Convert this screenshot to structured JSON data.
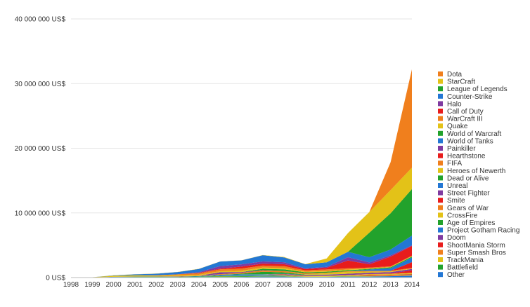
{
  "chart_data": {
    "type": "area",
    "stacked": true,
    "title": "",
    "xlabel": "",
    "ylabel": "",
    "ylim": [
      0,
      40000000
    ],
    "ytick_values": [
      0,
      10000000,
      20000000,
      30000000,
      40000000
    ],
    "ytick_labels": [
      "0 US$",
      "10 000 000 US$",
      "20 000 000 US$",
      "30 000 000 US$",
      "40 000 000 US$"
    ],
    "grid": true,
    "legend_position": "right",
    "x": [
      "1998",
      "1999",
      "2000",
      "2001",
      "2002",
      "2003",
      "2004",
      "2005",
      "2006",
      "2007",
      "2008",
      "2009",
      "2010",
      "2011",
      "2012",
      "2013",
      "2014"
    ],
    "series_order_bottom_to_top": "reverse of legend",
    "series": [
      {
        "name": "Dota",
        "color": "#f07f1d",
        "values": [
          0,
          0,
          0,
          0,
          0,
          0,
          0,
          0,
          0,
          0,
          0,
          0,
          0,
          0,
          0,
          4300000,
          15200000
        ]
      },
      {
        "name": "StarCraft",
        "color": "#e3c218",
        "values": [
          0,
          0,
          30000,
          20000,
          20000,
          20000,
          20000,
          20000,
          20000,
          30000,
          60000,
          30000,
          600000,
          2900000,
          3200000,
          3600000,
          3300000
        ]
      },
      {
        "name": "League of Legends",
        "color": "#22a22c",
        "values": [
          0,
          0,
          0,
          0,
          0,
          0,
          0,
          0,
          0,
          0,
          0,
          0,
          0,
          0,
          3800000,
          5600000,
          7200000
        ]
      },
      {
        "name": "Counter-Strike",
        "color": "#2377d4",
        "values": [
          0,
          0,
          50000,
          150000,
          250000,
          350000,
          500000,
          700000,
          600000,
          950000,
          750000,
          650000,
          700000,
          850000,
          800000,
          900000,
          1500000
        ]
      },
      {
        "name": "Halo",
        "color": "#7f3aa0",
        "values": [
          0,
          0,
          0,
          0,
          0,
          0,
          100000,
          400000,
          350000,
          350000,
          300000,
          100000,
          150000,
          500000,
          300000,
          200000,
          100000
        ]
      },
      {
        "name": "Call of Duty",
        "color": "#e81c1c",
        "values": [
          0,
          0,
          0,
          0,
          0,
          0,
          50000,
          100000,
          300000,
          300000,
          300000,
          200000,
          250000,
          1200000,
          500000,
          1500000,
          1500000
        ]
      },
      {
        "name": "WarCraft III",
        "color": "#f07f1d",
        "values": [
          0,
          0,
          0,
          0,
          50000,
          150000,
          250000,
          300000,
          350000,
          300000,
          300000,
          200000,
          250000,
          200000,
          150000,
          100000,
          100000
        ]
      },
      {
        "name": "Quake",
        "color": "#e3c218",
        "values": [
          50000,
          50000,
          150000,
          200000,
          150000,
          150000,
          150000,
          150000,
          200000,
          200000,
          200000,
          100000,
          100000,
          100000,
          50000,
          50000,
          50000
        ]
      },
      {
        "name": "World of Warcraft",
        "color": "#22a22c",
        "values": [
          0,
          0,
          0,
          0,
          0,
          0,
          0,
          0,
          0,
          200000,
          250000,
          150000,
          150000,
          150000,
          100000,
          150000,
          150000
        ]
      },
      {
        "name": "World of Tanks",
        "color": "#2377d4",
        "values": [
          0,
          0,
          0,
          0,
          0,
          0,
          0,
          0,
          0,
          0,
          0,
          0,
          0,
          0,
          200000,
          400000,
          700000
        ]
      },
      {
        "name": "Painkiller",
        "color": "#7f3aa0",
        "values": [
          0,
          0,
          0,
          0,
          0,
          0,
          0,
          300000,
          100000,
          50000,
          20000,
          0,
          0,
          0,
          0,
          0,
          0
        ]
      },
      {
        "name": "Hearthstone",
        "color": "#e81c1c",
        "values": [
          0,
          0,
          0,
          0,
          0,
          0,
          0,
          0,
          0,
          0,
          0,
          0,
          0,
          0,
          0,
          0,
          900000
        ]
      },
      {
        "name": "FIFA",
        "color": "#f07f1d",
        "values": [
          0,
          0,
          0,
          0,
          0,
          50000,
          50000,
          100000,
          150000,
          200000,
          200000,
          150000,
          100000,
          100000,
          100000,
          100000,
          100000
        ]
      },
      {
        "name": "Heroes of Newerth",
        "color": "#e3c218",
        "values": [
          0,
          0,
          0,
          0,
          0,
          0,
          0,
          0,
          0,
          0,
          0,
          50000,
          200000,
          300000,
          200000,
          100000,
          50000
        ]
      },
      {
        "name": "Dead or Alive",
        "color": "#22a22c",
        "values": [
          0,
          0,
          0,
          0,
          0,
          0,
          0,
          0,
          100000,
          400000,
          200000,
          50000,
          0,
          0,
          0,
          0,
          0
        ]
      },
      {
        "name": "Unreal",
        "color": "#2377d4",
        "values": [
          0,
          0,
          50000,
          50000,
          50000,
          50000,
          50000,
          50000,
          50000,
          50000,
          50000,
          20000,
          20000,
          0,
          0,
          0,
          0
        ]
      },
      {
        "name": "Street Fighter",
        "color": "#7f3aa0",
        "values": [
          0,
          0,
          0,
          0,
          0,
          0,
          0,
          0,
          0,
          0,
          50000,
          100000,
          150000,
          200000,
          200000,
          200000,
          200000
        ]
      },
      {
        "name": "Smite",
        "color": "#e81c1c",
        "values": [
          0,
          0,
          0,
          0,
          0,
          0,
          0,
          0,
          0,
          0,
          0,
          0,
          0,
          0,
          0,
          50000,
          400000
        ]
      },
      {
        "name": "Gears of War",
        "color": "#f07f1d",
        "values": [
          0,
          0,
          0,
          0,
          0,
          0,
          0,
          0,
          0,
          50000,
          150000,
          100000,
          50000,
          50000,
          50000,
          50000,
          50000
        ]
      },
      {
        "name": "CrossFire",
        "color": "#e3c218",
        "values": [
          0,
          0,
          0,
          0,
          0,
          0,
          0,
          0,
          0,
          0,
          0,
          0,
          50000,
          100000,
          100000,
          100000,
          150000
        ]
      },
      {
        "name": "Age of Empires",
        "color": "#22a22c",
        "values": [
          0,
          0,
          50000,
          50000,
          50000,
          50000,
          50000,
          50000,
          50000,
          50000,
          50000,
          20000,
          20000,
          20000,
          20000,
          20000,
          20000
        ]
      },
      {
        "name": "Project Gotham Racing",
        "color": "#2377d4",
        "values": [
          0,
          0,
          0,
          0,
          0,
          0,
          0,
          100000,
          150000,
          100000,
          50000,
          0,
          0,
          0,
          0,
          0,
          0
        ]
      },
      {
        "name": "Doom",
        "color": "#7f3aa0",
        "values": [
          0,
          0,
          0,
          0,
          0,
          0,
          0,
          0,
          0,
          0,
          0,
          0,
          0,
          0,
          0,
          0,
          0
        ]
      },
      {
        "name": "ShootMania Storm",
        "color": "#e81c1c",
        "values": [
          0,
          0,
          0,
          0,
          0,
          0,
          0,
          0,
          0,
          0,
          0,
          0,
          0,
          0,
          100000,
          100000,
          100000
        ]
      },
      {
        "name": "Super Smash Bros",
        "color": "#f07f1d",
        "values": [
          0,
          0,
          0,
          0,
          0,
          0,
          0,
          0,
          0,
          0,
          0,
          0,
          0,
          0,
          50000,
          50000,
          50000
        ]
      },
      {
        "name": "TrackMania",
        "color": "#e3c218",
        "values": [
          0,
          0,
          0,
          0,
          0,
          0,
          0,
          50000,
          50000,
          50000,
          50000,
          50000,
          50000,
          50000,
          50000,
          50000,
          50000
        ]
      },
      {
        "name": "Battlefield",
        "color": "#22a22c",
        "values": [
          0,
          0,
          0,
          0,
          0,
          0,
          50000,
          100000,
          100000,
          50000,
          50000,
          20000,
          20000,
          20000,
          20000,
          20000,
          20000
        ]
      },
      {
        "name": "Other",
        "color": "#2377d4",
        "values": [
          0,
          0,
          20000,
          50000,
          50000,
          50000,
          80000,
          80000,
          100000,
          150000,
          150000,
          100000,
          100000,
          150000,
          150000,
          200000,
          300000
        ]
      }
    ]
  }
}
